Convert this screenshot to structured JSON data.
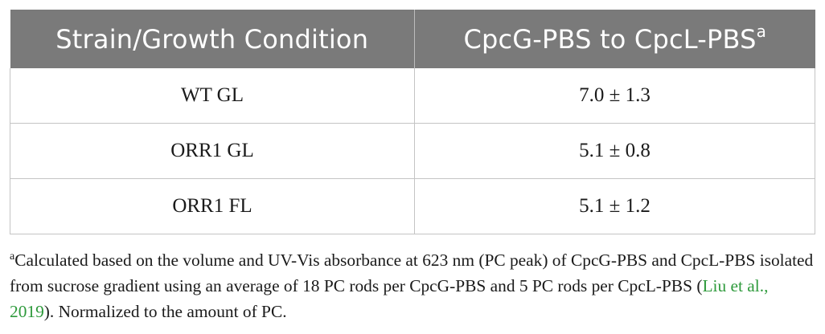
{
  "table": {
    "headers": {
      "col1": "Strain/Growth Condition",
      "col2": "CpcG-PBS to CpcL-PBS",
      "col2_superscript": "a"
    },
    "rows": [
      {
        "condition": "WT GL",
        "ratio": "7.0 ± 1.3"
      },
      {
        "condition": "ORR1 GL",
        "ratio": "5.1 ± 0.8"
      },
      {
        "condition": "ORR1 FL",
        "ratio": "5.1 ± 1.2"
      }
    ]
  },
  "footnote": {
    "marker": "a",
    "text_before": "Calculated based on the volume and UV-Vis absorbance at 623 nm (PC peak) of CpcG-PBS and CpcL-PBS isolated from sucrose gradient using an average of 18 PC rods per CpcG-PBS and 5 PC rods per CpcL-PBS (",
    "citation": "Liu et al., 2019",
    "text_after": "). Normalized to the amount of PC.",
    "citation_color": "#2e9a3c"
  },
  "colors": {
    "header_background": "#7a7a7a",
    "header_text": "#ffffff",
    "border": "#c4c4c4"
  }
}
